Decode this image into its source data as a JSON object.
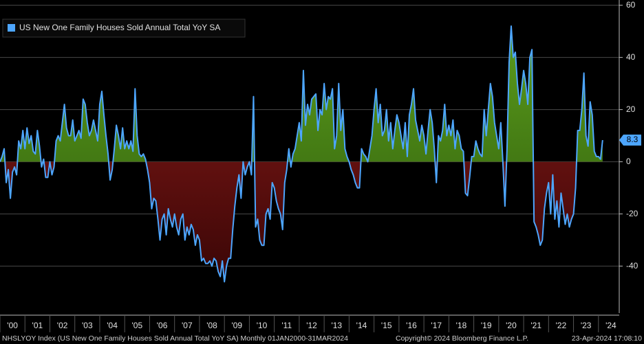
{
  "chart_data": {
    "type": "area",
    "series": [
      {
        "name": "US New One Family Houses Sold Annual Total YoY SA",
        "color": "#4da6ff",
        "positive_color": "#5c9c1c",
        "negative_color": "#8e1c1a",
        "values": [
          0,
          2,
          5,
          -8,
          -3,
          -14,
          -4,
          -2,
          -5,
          8,
          5,
          12,
          5,
          13,
          7,
          10,
          4,
          3,
          12,
          6,
          -2,
          1,
          -6,
          -6,
          0,
          -5,
          -2,
          8,
          10,
          8,
          15,
          22,
          13,
          10,
          10,
          16,
          8,
          10,
          12,
          9,
          24,
          22,
          15,
          10,
          12,
          16,
          12,
          8,
          22,
          27,
          18,
          10,
          3,
          -7,
          -3,
          5,
          14,
          10,
          5,
          13,
          5,
          8,
          5,
          8,
          4,
          28,
          10,
          3,
          2,
          3,
          1,
          -3,
          -8,
          -18,
          -14,
          -15,
          -22,
          -30,
          -22,
          -20,
          -28,
          -18,
          -22,
          -25,
          -20,
          -25,
          -28,
          -22,
          -20,
          -30,
          -25,
          -28,
          -24,
          -26,
          -32,
          -28,
          -30,
          -38,
          -37,
          -39,
          -39,
          -38,
          -40,
          -37,
          -38,
          -42,
          -44,
          -38,
          -46,
          -40,
          -37,
          -37,
          -26,
          -17,
          -10,
          -5,
          -14,
          0,
          -5,
          -2,
          0,
          -5,
          25,
          -25,
          -22,
          -30,
          -32,
          -32,
          -20,
          -18,
          -22,
          -8,
          -10,
          -15,
          -18,
          -20,
          -26,
          -8,
          -3,
          5,
          -2,
          3,
          5,
          10,
          15,
          8,
          35,
          14,
          22,
          18,
          24,
          25,
          26,
          12,
          20,
          18,
          30,
          20,
          25,
          24,
          28,
          5,
          10,
          30,
          12,
          20,
          5,
          2,
          0,
          -3,
          -5,
          -8,
          -10,
          -10,
          5,
          3,
          2,
          0,
          5,
          10,
          20,
          28,
          15,
          22,
          10,
          12,
          20,
          8,
          15,
          5,
          12,
          18,
          15,
          10,
          5,
          15,
          2,
          18,
          22,
          28,
          16,
          12,
          8,
          14,
          10,
          3,
          12,
          20,
          15,
          5,
          -8,
          10,
          8,
          12,
          22,
          10,
          14,
          10,
          16,
          5,
          12,
          10,
          5,
          4,
          -12,
          -13,
          -6,
          2,
          2,
          8,
          5,
          3,
          2,
          20,
          10,
          20,
          30,
          25,
          15,
          10,
          5,
          15,
          0,
          -17,
          5,
          38,
          52,
          40,
          42,
          30,
          22,
          28,
          35,
          30,
          22,
          40,
          43,
          -23,
          -25,
          -28,
          -32,
          -30,
          -18,
          -12,
          -8,
          -20,
          -5,
          -22,
          -15,
          -25,
          -12,
          -18,
          -24,
          -20,
          -25,
          -22,
          -20,
          -10,
          12,
          12,
          20,
          34,
          10,
          6,
          23,
          18,
          4,
          2,
          2,
          1,
          8.3
        ]
      }
    ],
    "xlim": [
      0,
      298
    ],
    "xticks": [
      {
        "value": 0,
        "label": "'00"
      },
      {
        "value": 12,
        "label": "'01"
      },
      {
        "value": 24,
        "label": "'02"
      },
      {
        "value": 36,
        "label": "'03"
      },
      {
        "value": 48,
        "label": "'04"
      },
      {
        "value": 60,
        "label": "'05"
      },
      {
        "value": 72,
        "label": "'06"
      },
      {
        "value": 84,
        "label": "'07"
      },
      {
        "value": 96,
        "label": "'08"
      },
      {
        "value": 108,
        "label": "'09"
      },
      {
        "value": 120,
        "label": "'10"
      },
      {
        "value": 132,
        "label": "'11"
      },
      {
        "value": 144,
        "label": "'12"
      },
      {
        "value": 156,
        "label": "'13"
      },
      {
        "value": 168,
        "label": "'14"
      },
      {
        "value": 180,
        "label": "'15"
      },
      {
        "value": 192,
        "label": "'16"
      },
      {
        "value": 204,
        "label": "'17"
      },
      {
        "value": 216,
        "label": "'18"
      },
      {
        "value": 228,
        "label": "'19"
      },
      {
        "value": 240,
        "label": "'20"
      },
      {
        "value": 252,
        "label": "'21"
      },
      {
        "value": 264,
        "label": "'22"
      },
      {
        "value": 276,
        "label": "'23"
      },
      {
        "value": 288,
        "label": "'24"
      }
    ],
    "ylim": [
      -58,
      62
    ],
    "yticks": [
      -40,
      -20,
      0,
      20,
      40,
      60
    ],
    "grid": true,
    "legend": "top-left",
    "footer_left": "NHSLYOY Index (US New One Family Houses Sold Annual Total YoY SA)  Monthly 01JAN2000-31MAR2024",
    "footer_center": "Copyright© 2024 Bloomberg Finance L.P.",
    "footer_right": "23-Apr-2024 17:08:10"
  }
}
